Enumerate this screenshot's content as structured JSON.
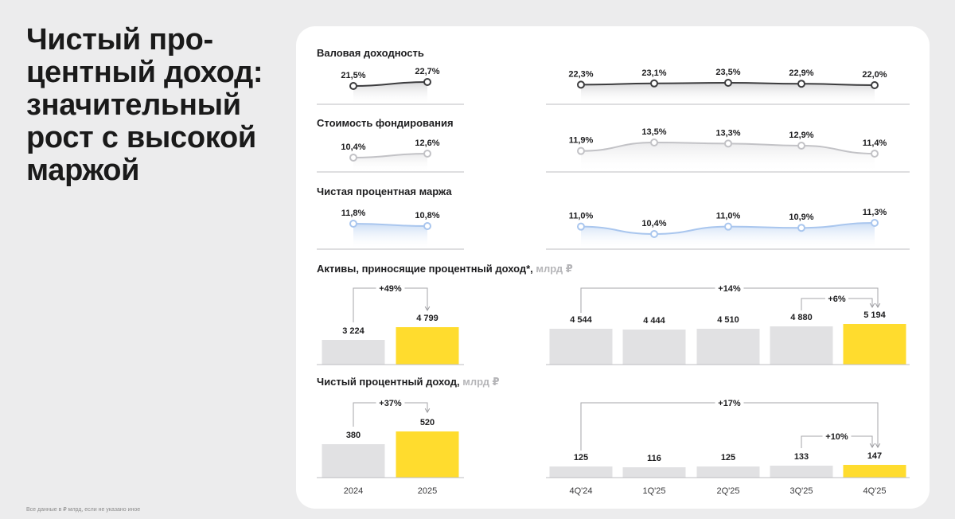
{
  "slide": {
    "title_lines": [
      "Чистый про-",
      "центный доход:",
      "значительный",
      "рост с высокой",
      "маржой"
    ],
    "footnote": "Все данные в ₽ млрд, если не указано иное"
  },
  "sections": {
    "gross_yield": {
      "title": "Валовая доходность"
    },
    "funding_cost": {
      "title": "Стоимость фондирования"
    },
    "nim": {
      "title": "Чистая процентная маржа"
    },
    "assets": {
      "title": "Активы, приносящие процентный доход*,",
      "unit": "млрд ₽"
    },
    "nii": {
      "title": "Чистый процентный доход,",
      "unit": "млрд ₽"
    }
  },
  "colors": {
    "dark_line": "#3c3c3e",
    "gray_line": "#c2c2c6",
    "blue_line": "#a9c6ee",
    "yellow_bar": "#ffdc2e",
    "gray_bar": "#e1e1e3",
    "axis": "#bdbdc0"
  },
  "chart_data": [
    {
      "id": "gross_yield_annual",
      "type": "line",
      "title": "Валовая доходность",
      "categories": [
        "2024",
        "2025"
      ],
      "values": [
        21.5,
        22.7
      ],
      "labels": [
        "21,5%",
        "22,7%"
      ]
    },
    {
      "id": "gross_yield_quarterly",
      "type": "line",
      "title": "Валовая доходность",
      "categories": [
        "4Q'24",
        "1Q'25",
        "2Q'25",
        "3Q'25",
        "4Q'25"
      ],
      "values": [
        22.3,
        23.1,
        23.5,
        22.9,
        22.0
      ],
      "labels": [
        "22,3%",
        "23,1%",
        "23,5%",
        "22,9%",
        "22,0%"
      ]
    },
    {
      "id": "funding_cost_annual",
      "type": "line",
      "title": "Стоимость фондирования",
      "categories": [
        "2024",
        "2025"
      ],
      "values": [
        10.4,
        12.6
      ],
      "labels": [
        "10,4%",
        "12,6%"
      ]
    },
    {
      "id": "funding_cost_quarterly",
      "type": "line",
      "title": "Стоимость фондирования",
      "categories": [
        "4Q'24",
        "1Q'25",
        "2Q'25",
        "3Q'25",
        "4Q'25"
      ],
      "values": [
        11.9,
        13.5,
        13.3,
        12.9,
        11.4
      ],
      "labels": [
        "11,9%",
        "13,5%",
        "13,3%",
        "12,9%",
        "11,4%"
      ]
    },
    {
      "id": "nim_annual",
      "type": "line",
      "title": "Чистая процентная маржа",
      "categories": [
        "2024",
        "2025"
      ],
      "values": [
        11.8,
        10.8
      ],
      "labels": [
        "11,8%",
        "10,8%"
      ]
    },
    {
      "id": "nim_quarterly",
      "type": "line",
      "title": "Чистая процентная маржа",
      "categories": [
        "4Q'24",
        "1Q'25",
        "2Q'25",
        "3Q'25",
        "4Q'25"
      ],
      "values": [
        11.0,
        10.4,
        11.0,
        10.9,
        11.3
      ],
      "labels": [
        "11,0%",
        "10,4%",
        "11,0%",
        "10,9%",
        "11,3%"
      ]
    },
    {
      "id": "assets_annual",
      "type": "bar",
      "title": "Активы, приносящие процентный доход*, млрд ₽",
      "categories": [
        "2024",
        "2025"
      ],
      "values": [
        3224,
        4799
      ],
      "labels": [
        "3 224",
        "4 799"
      ],
      "growth": [
        {
          "from": 0,
          "to": 1,
          "label": "+49%"
        }
      ]
    },
    {
      "id": "assets_quarterly",
      "type": "bar",
      "title": "Активы, приносящие процентный доход*, млрд ₽",
      "categories": [
        "4Q'24",
        "1Q'25",
        "2Q'25",
        "3Q'25",
        "4Q'25"
      ],
      "values": [
        4544,
        4444,
        4510,
        4880,
        5194
      ],
      "labels": [
        "4 544",
        "4 444",
        "4 510",
        "4 880",
        "5 194"
      ],
      "growth": [
        {
          "from": 0,
          "to": 4,
          "label": "+14%"
        },
        {
          "from": 3,
          "to": 4,
          "label": "+6%"
        }
      ]
    },
    {
      "id": "nii_annual",
      "type": "bar",
      "title": "Чистый процентный доход, млрд ₽",
      "categories": [
        "2024",
        "2025"
      ],
      "values": [
        380,
        520
      ],
      "labels": [
        "380",
        "520"
      ],
      "growth": [
        {
          "from": 0,
          "to": 1,
          "label": "+37%"
        }
      ]
    },
    {
      "id": "nii_quarterly",
      "type": "bar",
      "title": "Чистый процентный доход, млрд ₽",
      "categories": [
        "4Q'24",
        "1Q'25",
        "2Q'25",
        "3Q'25",
        "4Q'25"
      ],
      "values": [
        125,
        116,
        125,
        133,
        147
      ],
      "labels": [
        "125",
        "116",
        "125",
        "133",
        "147"
      ],
      "growth": [
        {
          "from": 0,
          "to": 4,
          "label": "+17%"
        },
        {
          "from": 3,
          "to": 4,
          "label": "+10%"
        }
      ]
    }
  ],
  "axis_labels": {
    "annual": [
      "2024",
      "2025"
    ],
    "quarterly": [
      "4Q'24",
      "1Q'25",
      "2Q'25",
      "3Q'25",
      "4Q'25"
    ]
  }
}
